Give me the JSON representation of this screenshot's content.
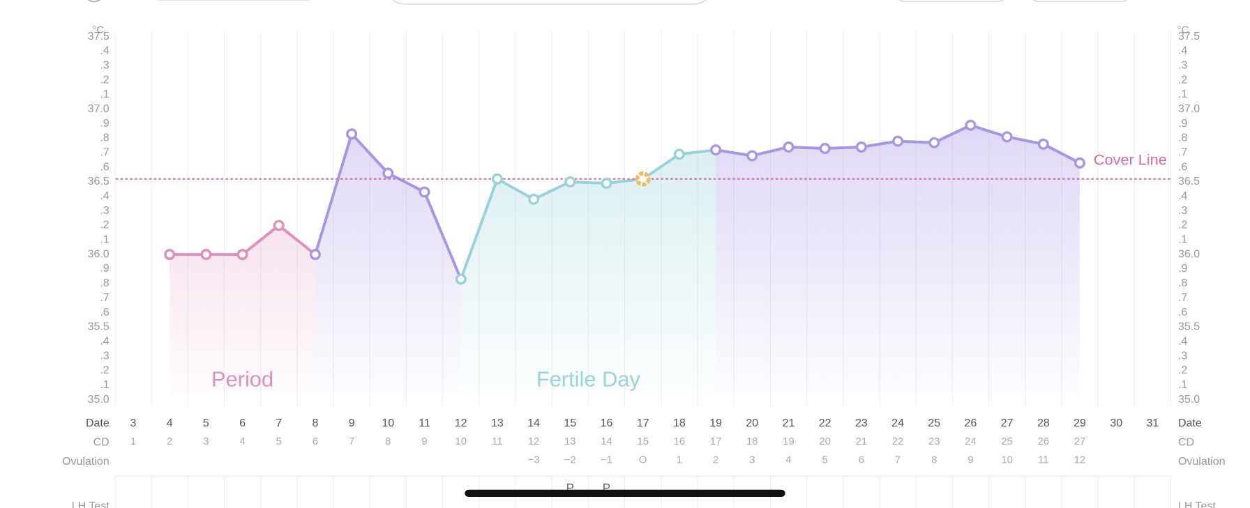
{
  "chart_data": {
    "type": "line",
    "unit": "°C",
    "row_labels": {
      "date": "Date",
      "cd": "CD",
      "ovulation": "Ovulation",
      "lh_test": "LH Test"
    },
    "categories": [
      3,
      4,
      5,
      6,
      7,
      8,
      9,
      10,
      11,
      12,
      13,
      14,
      15,
      16,
      17,
      18,
      19,
      20,
      21,
      22,
      23,
      24,
      25,
      26,
      27,
      28,
      29,
      30,
      31
    ],
    "cd": [
      1,
      2,
      3,
      4,
      5,
      6,
      7,
      8,
      9,
      10,
      11,
      12,
      13,
      14,
      15,
      16,
      17,
      18,
      19,
      20,
      21,
      22,
      23,
      24,
      25,
      26,
      27,
      null,
      null
    ],
    "ovulation": [
      null,
      null,
      null,
      null,
      null,
      null,
      null,
      null,
      null,
      null,
      null,
      "−3",
      "−2",
      "−1",
      "O",
      1,
      2,
      3,
      4,
      5,
      6,
      7,
      8,
      9,
      10,
      11,
      12,
      null,
      null
    ],
    "lh_test": [
      null,
      null,
      null,
      null,
      null,
      null,
      null,
      null,
      null,
      null,
      null,
      null,
      "P",
      "P",
      null,
      null,
      null,
      null,
      null,
      null,
      null,
      null,
      null,
      null,
      null,
      null,
      null,
      null,
      null
    ],
    "series": [
      {
        "name": "Period",
        "color": "#e08fbd",
        "values": [
          null,
          36,
          36,
          36,
          36.2,
          null,
          null,
          null,
          null,
          null,
          null,
          null,
          null,
          null,
          null,
          null,
          null,
          null,
          null,
          null,
          null,
          null,
          null,
          null,
          null,
          null,
          null,
          null,
          null
        ]
      },
      {
        "name": "Fertile Day",
        "color": "#98d2da",
        "values": [
          null,
          null,
          null,
          null,
          null,
          null,
          null,
          null,
          null,
          35.83,
          36.52,
          36.38,
          36.5,
          36.49,
          36.52,
          36.69,
          null,
          null,
          null,
          null,
          null,
          null,
          null,
          null,
          null,
          null,
          null,
          null,
          null
        ]
      },
      {
        "color": "#a895e4",
        "values": [
          null,
          null,
          null,
          null,
          null,
          36,
          36.83,
          36.56,
          36.43,
          null,
          null,
          null,
          null,
          null,
          null,
          null,
          36.72,
          36.68,
          36.74,
          36.73,
          36.74,
          36.78,
          36.77,
          36.89,
          36.81,
          36.76,
          36.63,
          null,
          null
        ]
      }
    ],
    "ovulation_marker_color": "#f0bd5a",
    "cover_line": {
      "label": "Cover Line",
      "value": 36.52,
      "color": "#d66aa8"
    },
    "ylim": [
      35,
      37.5
    ],
    "yticks": [
      {
        "value": 35,
        "label": "35.0"
      },
      {
        "value": 35.1,
        "label": ".1"
      },
      {
        "value": 35.2,
        "label": ".2"
      },
      {
        "value": 35.3,
        "label": ".3"
      },
      {
        "value": 35.4,
        "label": ".4"
      },
      35.5,
      {
        "value": 35.6,
        "label": ".6"
      },
      {
        "value": 35.7,
        "label": ".7"
      },
      {
        "value": 35.8,
        "label": ".8"
      },
      {
        "value": 35.9,
        "label": ".9"
      },
      {
        "value": 36,
        "label": "36.0"
      },
      {
        "value": 36.1,
        "label": ".1"
      },
      {
        "value": 36.2,
        "label": ".2"
      },
      {
        "value": 36.3,
        "label": ".3"
      },
      {
        "value": 36.4,
        "label": ".4"
      },
      36.5,
      {
        "value": 36.6,
        "label": ".6"
      },
      {
        "value": 36.7,
        "label": ".7"
      },
      {
        "value": 36.8,
        "label": ".8"
      },
      {
        "value": 36.9,
        "label": ".9"
      },
      {
        "value": 37,
        "label": "37.0"
      },
      {
        "value": 37.1,
        "label": ".1"
      },
      {
        "value": 37.2,
        "label": ".2"
      },
      {
        "value": 37.3,
        "label": ".3"
      },
      {
        "value": 37.4,
        "label": ".4"
      },
      37.5
    ],
    "grid": true
  }
}
